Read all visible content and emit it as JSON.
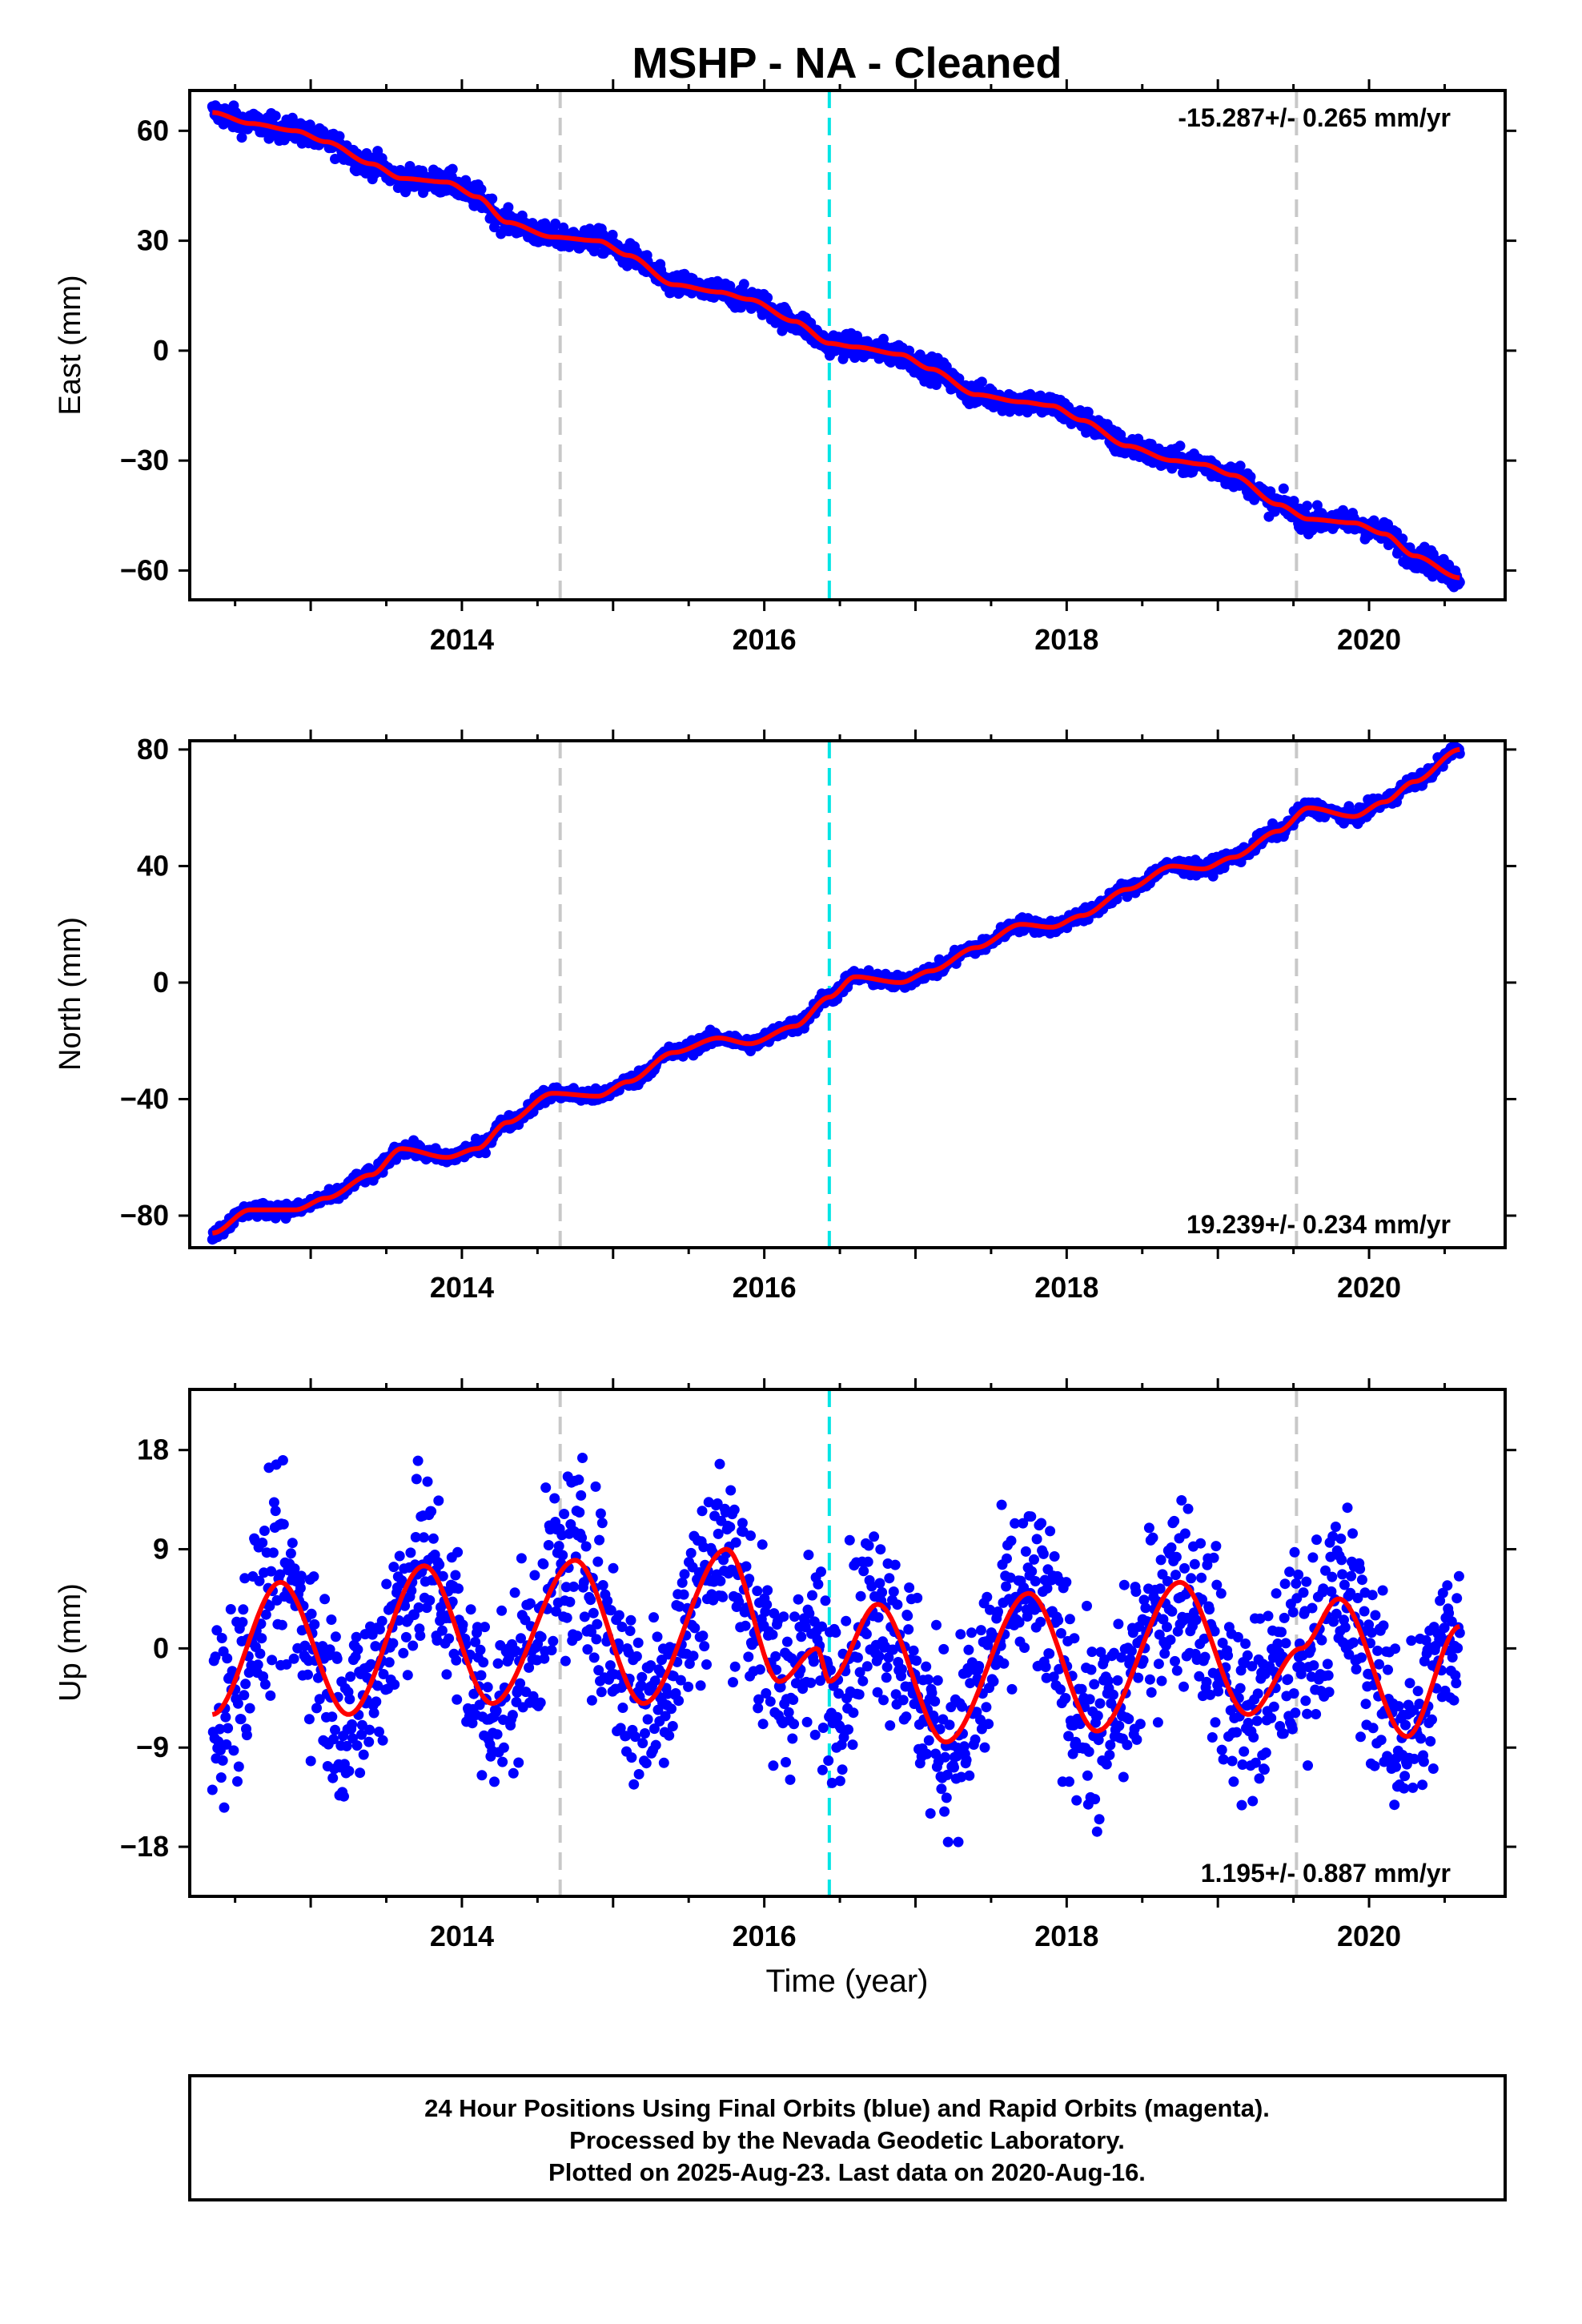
{
  "title": "MSHP  - NA - Cleaned",
  "xlabel": "Time (year)",
  "footer": {
    "line1": "24 Hour Positions Using Final Orbits (blue) and Rapid Orbits (magenta).",
    "line2": "Processed by the Nevada Geodetic Laboratory.",
    "line3": "Plotted on 2025-Aug-23. Last data on 2020-Aug-16."
  },
  "colors": {
    "points": "#0000ff",
    "fit": "#ff0000",
    "event_gray": "#c8c8c8",
    "event_cyan": "#00e5e5"
  },
  "events": [
    {
      "year": 2014.65,
      "color": "gray"
    },
    {
      "year": 2016.43,
      "color": "cyan"
    },
    {
      "year": 2019.52,
      "color": "gray"
    }
  ],
  "chart_data": [
    {
      "type": "scatter",
      "ylabel": "East (mm)",
      "rate_label": "-15.287+/- 0.265 mm/yr",
      "xlim": [
        2012.2,
        2020.9
      ],
      "ylim": [
        -68,
        71
      ],
      "xticks": [
        "2014",
        "2016",
        "2018",
        "2020"
      ],
      "yticks": [
        "60",
        "30",
        "0",
        "−30",
        "−60"
      ],
      "ytick_values": [
        60,
        30,
        0,
        -30,
        -60
      ],
      "series": [
        {
          "values_x": [
            2012.35,
            2012.6,
            2012.9,
            2013.1,
            2013.4,
            2013.6,
            2013.9,
            2014.1,
            2014.3,
            2014.6,
            2014.9,
            2015.1,
            2015.4,
            2015.7,
            2015.9,
            2016.2,
            2016.43,
            2016.6,
            2016.9,
            2017.1,
            2017.4,
            2017.7,
            2017.9,
            2018.1,
            2018.4,
            2018.7,
            2018.9,
            2019.1,
            2019.4,
            2019.6,
            2019.9,
            2020.1,
            2020.3,
            2020.6
          ],
          "values_y": [
            65,
            62,
            60,
            57,
            51,
            47,
            46,
            42,
            35,
            31,
            30,
            26,
            18,
            16,
            14,
            8,
            2,
            1,
            -1,
            -5,
            -12,
            -14,
            -15,
            -19,
            -26,
            -30,
            -31,
            -34,
            -42,
            -46,
            -47,
            -50,
            -56,
            -62
          ]
        }
      ]
    },
    {
      "type": "scatter",
      "ylabel": "North (mm)",
      "rate_label": "19.239+/- 0.234 mm/yr",
      "xlim": [
        2012.2,
        2020.9
      ],
      "ylim": [
        -91,
        83
      ],
      "xticks": [
        "2014",
        "2016",
        "2018",
        "2020"
      ],
      "yticks": [
        "80",
        "40",
        "0",
        "−40",
        "−80"
      ],
      "ytick_values": [
        80,
        40,
        0,
        -40,
        -80
      ],
      "series": [
        {
          "values_x": [
            2012.35,
            2012.6,
            2012.9,
            2013.1,
            2013.4,
            2013.6,
            2013.9,
            2014.1,
            2014.3,
            2014.6,
            2014.9,
            2015.1,
            2015.4,
            2015.7,
            2015.9,
            2016.2,
            2016.43,
            2016.6,
            2016.9,
            2017.1,
            2017.4,
            2017.7,
            2017.9,
            2018.1,
            2018.4,
            2018.7,
            2018.9,
            2019.1,
            2019.4,
            2019.6,
            2019.9,
            2020.1,
            2020.3,
            2020.6
          ],
          "values_y": [
            -86,
            -78,
            -78,
            -74,
            -66,
            -57,
            -60,
            -57,
            -48,
            -38,
            -39,
            -34,
            -24,
            -19,
            -21,
            -15,
            -5,
            2,
            0,
            4,
            12,
            20,
            19,
            23,
            32,
            40,
            39,
            43,
            52,
            60,
            57,
            62,
            69,
            80
          ]
        }
      ]
    },
    {
      "type": "scatter",
      "ylabel": "Up (mm)",
      "rate_label": "1.195+/- 0.887 mm/yr",
      "xlim": [
        2012.2,
        2020.9
      ],
      "ylim": [
        -22.5,
        23.5
      ],
      "xticks": [
        "2014",
        "2016",
        "2018",
        "2020"
      ],
      "yticks": [
        "18",
        "9",
        "0",
        "−9",
        "−18"
      ],
      "ytick_values": [
        18,
        9,
        0,
        -9,
        -18
      ],
      "series": [
        {
          "values_x": [
            2012.35,
            2012.8,
            2013.25,
            2013.75,
            2014.2,
            2014.75,
            2015.2,
            2015.75,
            2016.1,
            2016.35,
            2016.43,
            2016.75,
            2017.2,
            2017.75,
            2018.2,
            2018.75,
            2019.2,
            2019.55,
            2019.8,
            2020.25,
            2020.6
          ],
          "values_y": [
            -6,
            6,
            -6,
            7.5,
            -5,
            8,
            -5,
            9,
            -3,
            0,
            -3,
            4,
            -8.5,
            5,
            -7.5,
            6,
            -6,
            0,
            4.5,
            -8,
            2
          ]
        }
      ]
    }
  ]
}
